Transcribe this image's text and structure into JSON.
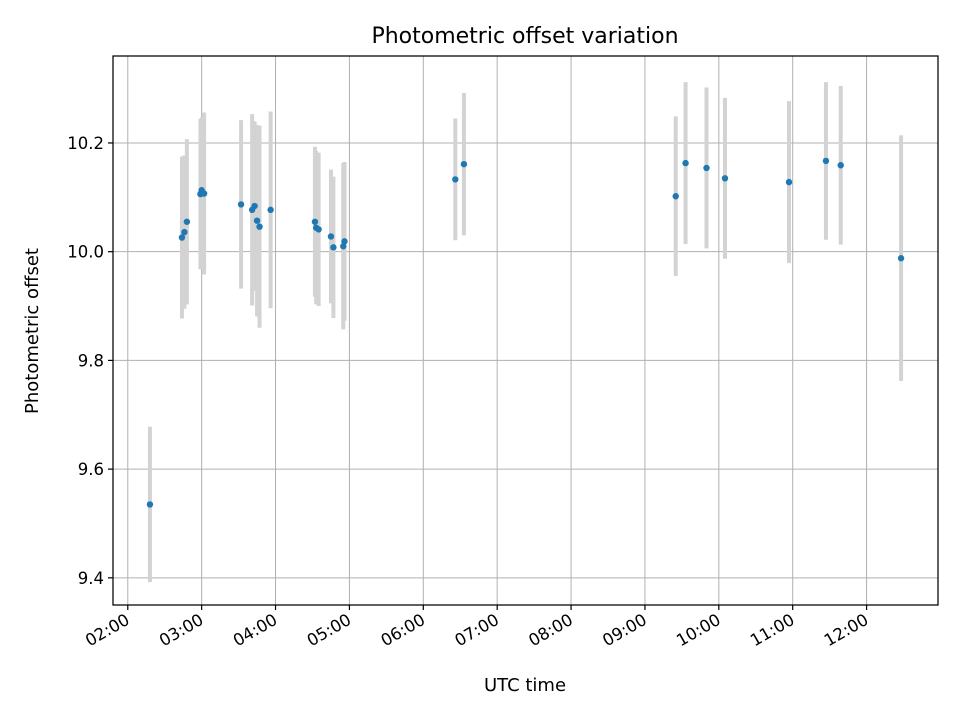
{
  "chart_data": {
    "type": "scatter",
    "title": "Photometric offset variation",
    "xlabel": "UTC time",
    "ylabel": "Photometric offset",
    "xlim": [
      "01:48",
      "12:58"
    ],
    "ylim": [
      9.35,
      10.36
    ],
    "x_ticks": [
      "02:00",
      "03:00",
      "04:00",
      "05:00",
      "06:00",
      "07:00",
      "08:00",
      "09:00",
      "10:00",
      "11:00",
      "12:00"
    ],
    "y_ticks": [
      "9.4",
      "9.6",
      "9.8",
      "10.0",
      "10.2"
    ],
    "grid": true,
    "colors": {
      "point": "#1f77b4",
      "errorbar": "#d3d3d3",
      "grid": "#b0b0b0"
    },
    "points": [
      {
        "x": "02:18",
        "y": 9.535,
        "err": 0.143
      },
      {
        "x": "02:44",
        "y": 10.026,
        "err": 0.149
      },
      {
        "x": "02:46",
        "y": 10.036,
        "err": 0.141
      },
      {
        "x": "02:48",
        "y": 10.055,
        "err": 0.152
      },
      {
        "x": "02:59",
        "y": 10.106,
        "err": 0.138
      },
      {
        "x": "03:00",
        "y": 10.113,
        "err": 0.134
      },
      {
        "x": "03:02",
        "y": 10.107,
        "err": 0.149
      },
      {
        "x": "03:32",
        "y": 10.087,
        "err": 0.155
      },
      {
        "x": "03:41",
        "y": 10.077,
        "err": 0.176
      },
      {
        "x": "03:43",
        "y": 10.084,
        "err": 0.156
      },
      {
        "x": "03:45",
        "y": 10.057,
        "err": 0.176
      },
      {
        "x": "03:47",
        "y": 10.046,
        "err": 0.186
      },
      {
        "x": "03:56",
        "y": 10.077,
        "err": 0.181
      },
      {
        "x": "04:32",
        "y": 10.055,
        "err": 0.138
      },
      {
        "x": "04:33",
        "y": 10.044,
        "err": 0.141
      },
      {
        "x": "04:35",
        "y": 10.041,
        "err": 0.141
      },
      {
        "x": "04:45",
        "y": 10.028,
        "err": 0.123
      },
      {
        "x": "04:47",
        "y": 10.008,
        "err": 0.13
      },
      {
        "x": "04:55",
        "y": 10.01,
        "err": 0.153
      },
      {
        "x": "04:56",
        "y": 10.019,
        "err": 0.146
      },
      {
        "x": "06:26",
        "y": 10.133,
        "err": 0.112
      },
      {
        "x": "06:33",
        "y": 10.161,
        "err": 0.131
      },
      {
        "x": "09:25",
        "y": 10.102,
        "err": 0.147
      },
      {
        "x": "09:33",
        "y": 10.163,
        "err": 0.149
      },
      {
        "x": "09:50",
        "y": 10.154,
        "err": 0.148
      },
      {
        "x": "10:05",
        "y": 10.135,
        "err": 0.148
      },
      {
        "x": "10:57",
        "y": 10.128,
        "err": 0.149
      },
      {
        "x": "11:27",
        "y": 10.167,
        "err": 0.145
      },
      {
        "x": "11:39",
        "y": 10.159,
        "err": 0.146
      },
      {
        "x": "12:28",
        "y": 9.988,
        "err": 0.226
      }
    ]
  }
}
